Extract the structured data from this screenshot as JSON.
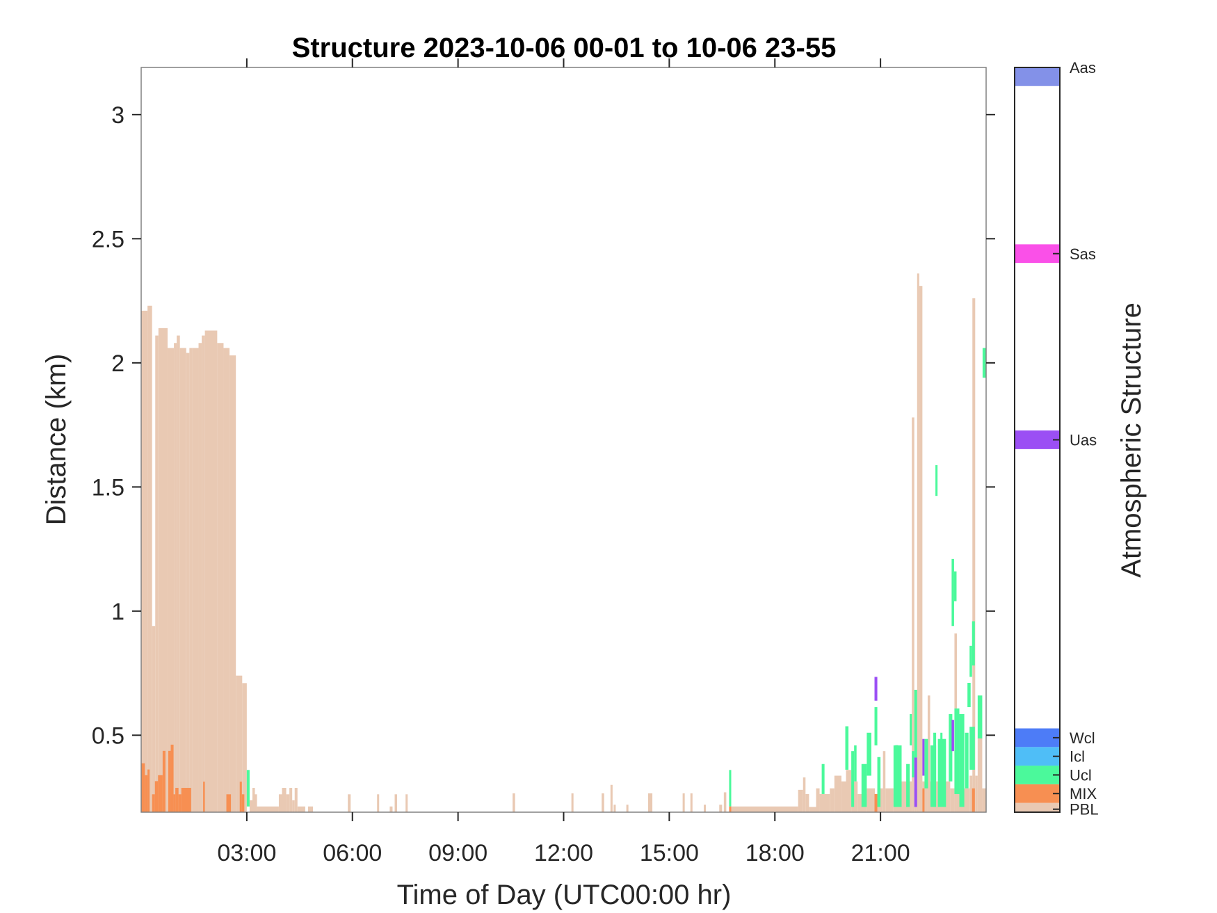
{
  "chart_data": {
    "type": "heatmap",
    "title": "Structure 2023-10-06 00-01 to 10-06 23-55",
    "xlabel": "Time of Day (UTC00:00 hr)",
    "ylabel": "Distance (km)",
    "colorbar_label": "Atmospheric Structure",
    "xlim": [
      0,
      24
    ],
    "ylim": [
      0.19,
      3.19
    ],
    "xticks": [
      3,
      6,
      9,
      12,
      15,
      18,
      21
    ],
    "xtick_labels": [
      "03:00",
      "06:00",
      "09:00",
      "12:00",
      "15:00",
      "18:00",
      "21:00"
    ],
    "yticks": [
      0.5,
      1,
      1.5,
      2,
      2.5,
      3
    ],
    "ytick_labels": [
      "0.5",
      "1",
      "1.5",
      "2",
      "2.5",
      "3"
    ],
    "grid": false,
    "classes": [
      {
        "label": "PBL",
        "color": "#E9C9B3"
      },
      {
        "label": "MIX",
        "color": "#F78F52"
      },
      {
        "label": "Ucl",
        "color": "#4BF99B"
      },
      {
        "label": "Icl",
        "color": "#4FBEF7"
      },
      {
        "label": "Wcl",
        "color": "#4D7CF7"
      },
      {
        "label": "Uas",
        "color": "#9B4FF4"
      },
      {
        "label": "Sas",
        "color": "#FA50E8"
      },
      {
        "label": "Aas",
        "color": "#8391E8"
      }
    ],
    "segment_fields": [
      "start_hr",
      "end_hr",
      "base_km",
      "top_km",
      "class"
    ],
    "segments": [
      [
        0.0,
        0.18,
        0.19,
        2.21,
        "PBL"
      ],
      [
        0.18,
        0.31,
        0.19,
        2.23,
        "PBL"
      ],
      [
        0.31,
        0.4,
        0.19,
        0.94,
        "PBL"
      ],
      [
        0.4,
        0.49,
        0.19,
        2.11,
        "PBL"
      ],
      [
        0.49,
        0.75,
        0.19,
        2.14,
        "PBL"
      ],
      [
        0.75,
        0.93,
        0.19,
        2.06,
        "PBL"
      ],
      [
        0.93,
        1.01,
        0.19,
        2.08,
        "PBL"
      ],
      [
        1.01,
        1.1,
        0.19,
        2.11,
        "PBL"
      ],
      [
        1.1,
        1.28,
        0.19,
        2.06,
        "PBL"
      ],
      [
        1.28,
        1.37,
        0.19,
        2.04,
        "PBL"
      ],
      [
        1.37,
        1.46,
        0.19,
        2.06,
        "PBL"
      ],
      [
        1.46,
        1.63,
        0.19,
        2.06,
        "PBL"
      ],
      [
        1.63,
        1.72,
        0.19,
        2.08,
        "PBL"
      ],
      [
        1.72,
        1.81,
        0.19,
        2.11,
        "PBL"
      ],
      [
        1.81,
        2.16,
        0.19,
        2.13,
        "PBL"
      ],
      [
        2.16,
        2.34,
        0.19,
        2.08,
        "PBL"
      ],
      [
        2.34,
        2.51,
        0.19,
        2.06,
        "PBL"
      ],
      [
        2.51,
        2.69,
        0.19,
        2.03,
        "PBL"
      ],
      [
        2.69,
        2.87,
        0.19,
        0.74,
        "PBL"
      ],
      [
        2.87,
        3.0,
        0.19,
        0.71,
        "PBL"
      ],
      [
        0.0,
        0.105,
        0.19,
        0.387,
        "MIX"
      ],
      [
        0.105,
        0.18,
        0.19,
        0.339,
        "MIX"
      ],
      [
        0.18,
        0.24,
        0.19,
        0.362,
        "MIX"
      ],
      [
        0.31,
        0.39,
        0.19,
        0.262,
        "MIX"
      ],
      [
        0.39,
        0.48,
        0.19,
        0.315,
        "MIX"
      ],
      [
        0.48,
        0.61,
        0.19,
        0.339,
        "MIX"
      ],
      [
        0.61,
        0.69,
        0.19,
        0.437,
        "MIX"
      ],
      [
        0.77,
        0.84,
        0.19,
        0.437,
        "MIX"
      ],
      [
        0.84,
        0.92,
        0.19,
        0.462,
        "MIX"
      ],
      [
        0.92,
        0.97,
        0.19,
        0.262,
        "MIX"
      ],
      [
        0.97,
        1.06,
        0.19,
        0.288,
        "MIX"
      ],
      [
        1.06,
        1.14,
        0.19,
        0.262,
        "MIX"
      ],
      [
        1.14,
        1.42,
        0.19,
        0.288,
        "MIX"
      ],
      [
        1.76,
        1.81,
        0.19,
        0.313,
        "MIX"
      ],
      [
        2.42,
        2.55,
        0.19,
        0.262,
        "MIX"
      ],
      [
        2.8,
        2.86,
        0.19,
        0.313,
        "MIX"
      ],
      [
        2.86,
        2.93,
        0.19,
        0.262,
        "MIX"
      ],
      [
        3.0,
        3.08,
        0.213,
        0.36,
        "Ucl"
      ],
      [
        3.08,
        3.16,
        0.19,
        0.238,
        "PBL"
      ],
      [
        3.16,
        3.23,
        0.19,
        0.288,
        "PBL"
      ],
      [
        3.23,
        3.29,
        0.19,
        0.262,
        "PBL"
      ],
      [
        3.29,
        3.91,
        0.19,
        0.213,
        "PBL"
      ],
      [
        3.91,
        4.0,
        0.19,
        0.262,
        "PBL"
      ],
      [
        4.0,
        4.12,
        0.19,
        0.288,
        "PBL"
      ],
      [
        4.12,
        4.21,
        0.19,
        0.262,
        "PBL"
      ],
      [
        4.21,
        4.29,
        0.19,
        0.288,
        "PBL"
      ],
      [
        4.29,
        4.36,
        0.19,
        0.238,
        "PBL"
      ],
      [
        4.36,
        4.44,
        0.19,
        0.288,
        "PBL"
      ],
      [
        4.44,
        4.66,
        0.19,
        0.213,
        "PBL"
      ],
      [
        4.74,
        4.88,
        0.19,
        0.213,
        "PBL"
      ],
      [
        5.87,
        5.95,
        0.19,
        0.262,
        "PBL"
      ],
      [
        6.7,
        6.76,
        0.19,
        0.262,
        "PBL"
      ],
      [
        7.06,
        7.14,
        0.19,
        0.213,
        "PBL"
      ],
      [
        7.2,
        7.27,
        0.19,
        0.262,
        "PBL"
      ],
      [
        7.51,
        7.57,
        0.19,
        0.262,
        "PBL"
      ],
      [
        10.55,
        10.62,
        0.19,
        0.266,
        "PBL"
      ],
      [
        12.22,
        12.28,
        0.19,
        0.266,
        "PBL"
      ],
      [
        13.08,
        13.15,
        0.19,
        0.266,
        "PBL"
      ],
      [
        13.33,
        13.39,
        0.19,
        0.3,
        "PBL"
      ],
      [
        13.42,
        13.48,
        0.19,
        0.22,
        "PBL"
      ],
      [
        13.78,
        13.84,
        0.19,
        0.22,
        "PBL"
      ],
      [
        14.4,
        14.52,
        0.19,
        0.266,
        "PBL"
      ],
      [
        15.38,
        15.44,
        0.19,
        0.266,
        "PBL"
      ],
      [
        15.6,
        15.66,
        0.19,
        0.266,
        "PBL"
      ],
      [
        15.98,
        16.04,
        0.19,
        0.22,
        "PBL"
      ],
      [
        16.42,
        16.5,
        0.19,
        0.22,
        "PBL"
      ],
      [
        16.55,
        16.62,
        0.19,
        0.27,
        "PBL"
      ],
      [
        16.7,
        18.66,
        0.19,
        0.213,
        "PBL"
      ],
      [
        16.7,
        16.76,
        0.213,
        0.36,
        "Ucl"
      ],
      [
        16.7,
        16.76,
        0.19,
        0.213,
        "MIX"
      ],
      [
        18.66,
        18.8,
        0.19,
        0.28,
        "PBL"
      ],
      [
        18.8,
        18.87,
        0.19,
        0.33,
        "PBL"
      ],
      [
        18.87,
        18.97,
        0.19,
        0.263,
        "PBL"
      ],
      [
        18.97,
        19.17,
        0.19,
        0.211,
        "PBL"
      ],
      [
        19.17,
        19.27,
        0.19,
        0.286,
        "PBL"
      ],
      [
        19.27,
        19.56,
        0.19,
        0.263,
        "PBL"
      ],
      [
        19.56,
        19.69,
        0.19,
        0.286,
        "PBL"
      ],
      [
        19.69,
        19.89,
        0.19,
        0.337,
        "PBL"
      ],
      [
        19.89,
        20.02,
        0.19,
        0.314,
        "PBL"
      ],
      [
        20.02,
        20.17,
        0.19,
        0.36,
        "PBL"
      ],
      [
        20.17,
        20.35,
        0.19,
        0.314,
        "PBL"
      ],
      [
        20.35,
        20.61,
        0.19,
        0.263,
        "PBL"
      ],
      [
        20.61,
        20.84,
        0.19,
        0.286,
        "PBL"
      ],
      [
        20.84,
        20.91,
        0.19,
        0.263,
        "PBL"
      ],
      [
        20.91,
        21.07,
        0.19,
        0.286,
        "PBL"
      ],
      [
        21.07,
        21.14,
        0.19,
        0.436,
        "PBL"
      ],
      [
        21.14,
        21.37,
        0.19,
        0.286,
        "PBL"
      ],
      [
        21.37,
        21.6,
        0.19,
        0.263,
        "PBL"
      ],
      [
        21.6,
        21.89,
        0.19,
        0.314,
        "PBL"
      ],
      [
        21.89,
        21.96,
        0.19,
        1.78,
        "PBL"
      ],
      [
        21.96,
        22.04,
        0.19,
        0.286,
        "PBL"
      ],
      [
        22.04,
        22.1,
        0.19,
        2.36,
        "PBL"
      ],
      [
        22.1,
        22.19,
        0.19,
        2.31,
        "PBL"
      ],
      [
        22.19,
        22.34,
        0.19,
        0.314,
        "PBL"
      ],
      [
        22.34,
        22.41,
        0.19,
        0.66,
        "PBL"
      ],
      [
        22.41,
        22.98,
        0.19,
        0.314,
        "PBL"
      ],
      [
        22.98,
        23.1,
        0.19,
        0.286,
        "PBL"
      ],
      [
        23.1,
        23.17,
        0.19,
        0.91,
        "PBL"
      ],
      [
        23.17,
        23.53,
        0.19,
        0.286,
        "PBL"
      ],
      [
        23.53,
        23.61,
        0.19,
        0.337,
        "PBL"
      ],
      [
        23.61,
        23.69,
        0.19,
        2.26,
        "PBL"
      ],
      [
        23.69,
        23.76,
        0.19,
        0.337,
        "PBL"
      ],
      [
        23.76,
        23.89,
        0.19,
        0.49,
        "PBL"
      ],
      [
        23.89,
        24.0,
        0.19,
        0.286,
        "PBL"
      ],
      [
        19.33,
        19.41,
        0.263,
        0.384,
        "Ucl"
      ],
      [
        20.0,
        20.09,
        0.361,
        0.536,
        "Ucl"
      ],
      [
        20.17,
        20.25,
        0.211,
        0.436,
        "Ucl"
      ],
      [
        20.25,
        20.32,
        0.314,
        0.459,
        "Ucl"
      ],
      [
        20.46,
        20.61,
        0.211,
        0.384,
        "Ucl"
      ],
      [
        20.61,
        20.74,
        0.337,
        0.51,
        "Ucl"
      ],
      [
        20.83,
        20.91,
        0.459,
        0.613,
        "Ucl"
      ],
      [
        20.83,
        20.91,
        0.639,
        0.735,
        "Uas"
      ],
      [
        20.83,
        20.91,
        0.19,
        0.263,
        "MIX"
      ],
      [
        20.91,
        21.0,
        0.211,
        0.412,
        "Ucl"
      ],
      [
        21.37,
        21.6,
        0.211,
        0.459,
        "Ucl"
      ],
      [
        21.42,
        21.5,
        0.263,
        0.46,
        "Ucl"
      ],
      [
        21.73,
        21.83,
        0.211,
        0.384,
        "Ucl"
      ],
      [
        21.83,
        21.89,
        0.459,
        0.585,
        "Ucl"
      ],
      [
        21.89,
        21.96,
        0.33,
        0.436,
        "Ucl"
      ],
      [
        21.96,
        22.04,
        0.41,
        0.683,
        "Ucl"
      ],
      [
        21.96,
        22.04,
        0.211,
        0.41,
        "Uas"
      ],
      [
        22.19,
        22.25,
        0.337,
        0.485,
        "Uas"
      ],
      [
        22.19,
        22.25,
        0.19,
        0.286,
        "MIX"
      ],
      [
        22.25,
        22.35,
        0.286,
        0.485,
        "Ucl"
      ],
      [
        22.42,
        22.58,
        0.211,
        0.459,
        "Ucl"
      ],
      [
        22.5,
        22.58,
        0.314,
        0.51,
        "Ucl"
      ],
      [
        22.56,
        22.62,
        1.464,
        1.588,
        "Ucl"
      ],
      [
        22.63,
        22.86,
        0.211,
        0.485,
        "Ucl"
      ],
      [
        22.7,
        22.76,
        0.36,
        0.51,
        "Ucl"
      ],
      [
        22.94,
        23.04,
        0.314,
        0.585,
        "Ucl"
      ],
      [
        23.02,
        23.09,
        0.436,
        0.562,
        "Uas"
      ],
      [
        23.02,
        23.09,
        0.94,
        1.21,
        "Ucl"
      ],
      [
        23.09,
        23.16,
        1.04,
        1.16,
        "Ucl"
      ],
      [
        23.1,
        23.24,
        0.263,
        0.608,
        "Ucl"
      ],
      [
        23.24,
        23.38,
        0.211,
        0.585,
        "Ucl"
      ],
      [
        23.4,
        23.5,
        0.286,
        0.51,
        "Ucl"
      ],
      [
        23.47,
        23.56,
        0.613,
        0.711,
        "Ucl"
      ],
      [
        23.53,
        23.68,
        0.361,
        0.534,
        "Ucl"
      ],
      [
        23.53,
        23.6,
        0.735,
        0.86,
        "Ucl"
      ],
      [
        23.6,
        23.68,
        0.781,
        0.959,
        "Ucl"
      ],
      [
        23.6,
        23.68,
        0.19,
        0.286,
        "MIX"
      ],
      [
        23.76,
        23.89,
        0.487,
        0.66,
        "Ucl"
      ],
      [
        23.9,
        24.0,
        1.94,
        2.06,
        "Ucl"
      ]
    ]
  }
}
